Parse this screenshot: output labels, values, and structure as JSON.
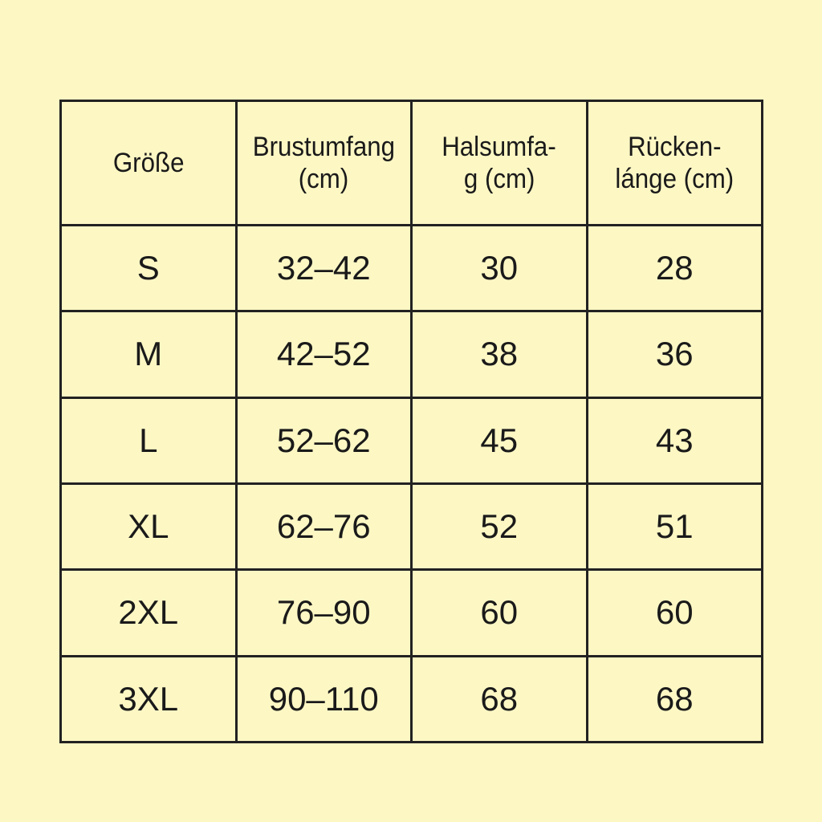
{
  "headers": [
    {
      "line1": "Größe",
      "line2": ""
    },
    {
      "line1": "Brustumfang",
      "line2": "(cm)"
    },
    {
      "line1": "Halsumfa-",
      "line2": "g (cm)"
    },
    {
      "line1": "Rücken-",
      "line2": "lánge (cm)"
    }
  ],
  "rows": [
    [
      "S",
      "32–42",
      "30",
      "28"
    ],
    [
      "M",
      "42–52",
      "38",
      "36"
    ],
    [
      "L",
      "52–62",
      "45",
      "43"
    ],
    [
      "XL",
      "62–76",
      "52",
      "51"
    ],
    [
      "2XL",
      "76–90",
      "60",
      "60"
    ],
    [
      "3XL",
      "90–110",
      "68",
      "68"
    ]
  ],
  "colors": {
    "background": "#fdf7c4",
    "border": "#222222"
  }
}
